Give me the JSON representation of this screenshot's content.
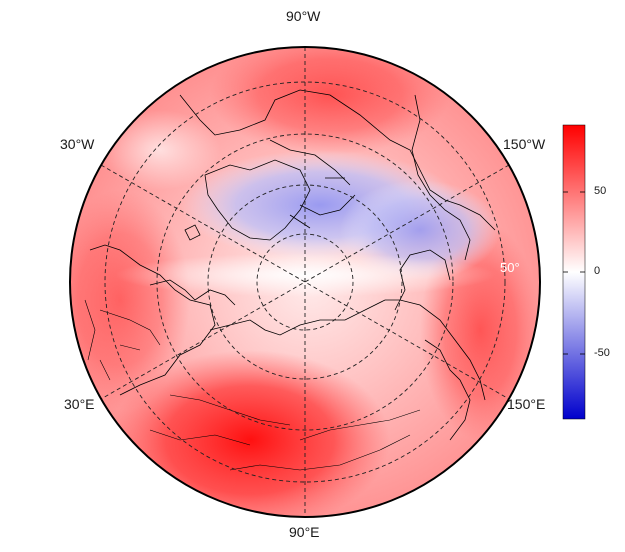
{
  "map": {
    "projection": "north polar stereographic",
    "lon_labels": {
      "top": "90°W",
      "upper_left": "30°W",
      "upper_right": "150°W",
      "lower_left": "30°E",
      "lower_right": "150°E",
      "bottom": "90°E"
    },
    "lat_label": "50°",
    "colors": {
      "high": "#ff0000",
      "mid": "#ffffff",
      "low": "#0000cc"
    }
  },
  "colorbar": {
    "ticks": [
      "50",
      "0",
      "-50"
    ],
    "range": [
      -90,
      90
    ]
  }
}
